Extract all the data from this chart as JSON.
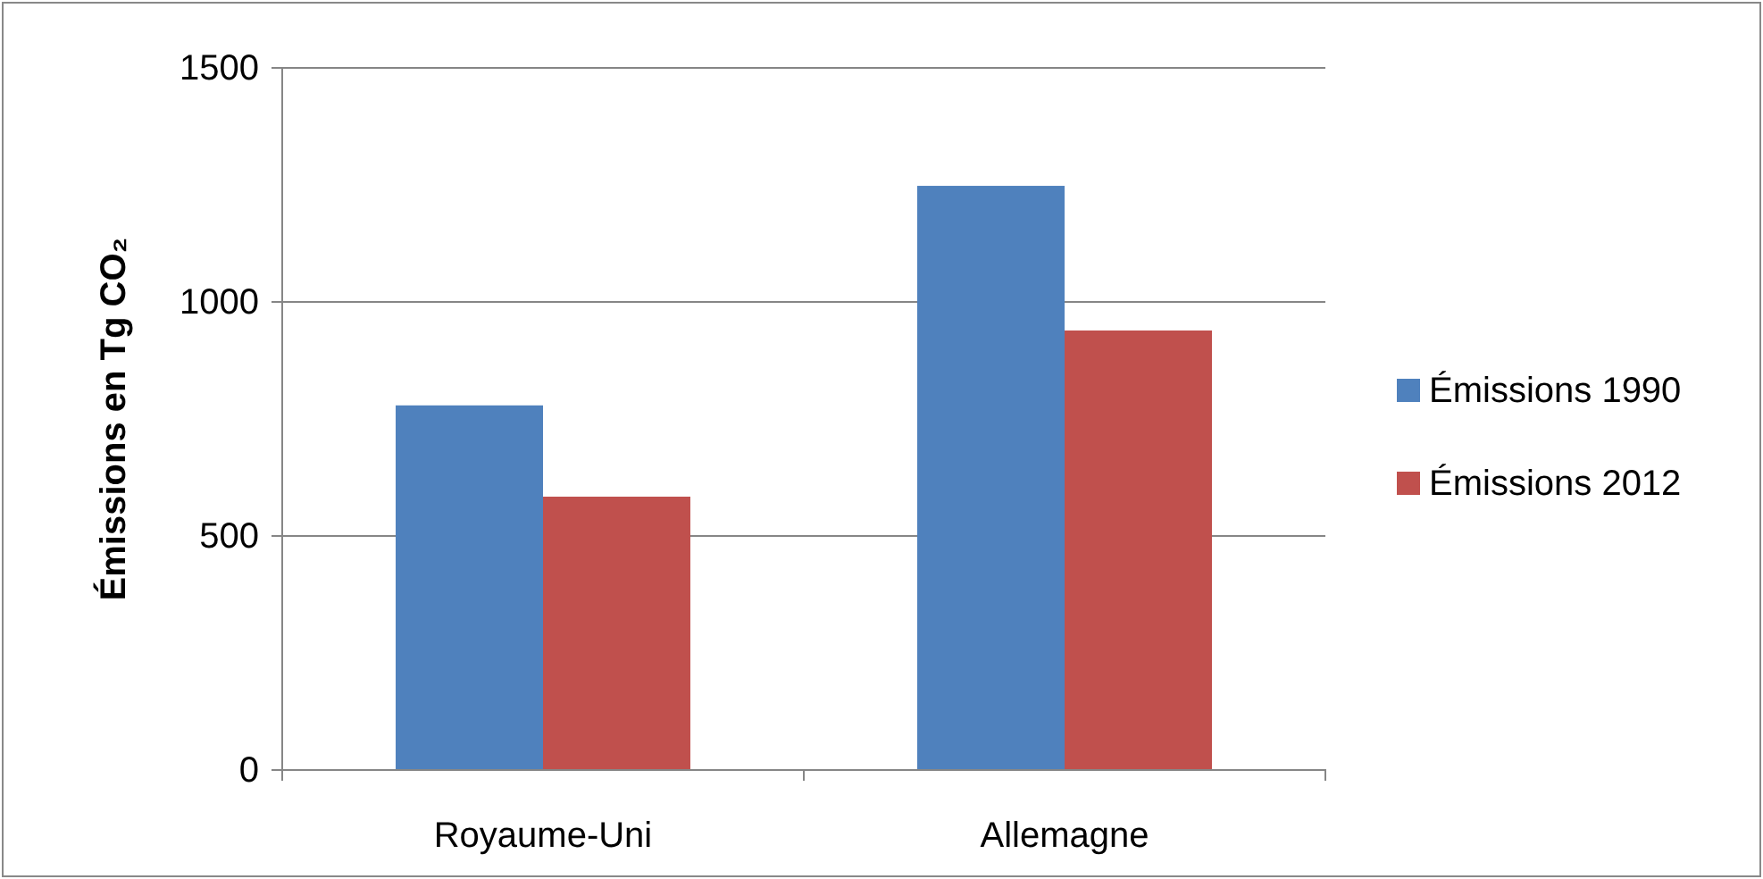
{
  "chart_data": {
    "type": "bar",
    "ylabel": "Émissions en Tg CO₂",
    "categories": [
      "Royaume-Uni",
      "Allemagne"
    ],
    "series": [
      {
        "name": "Émissions 1990",
        "color": "#4f81bd",
        "values": [
          779,
          1248
        ]
      },
      {
        "name": "Émissions 2012",
        "color": "#c0504d",
        "values": [
          584,
          939
        ]
      }
    ],
    "ylim": [
      0,
      1500
    ],
    "yticks": [
      0,
      500,
      1000,
      1500
    ],
    "grid": "y",
    "legend": "right"
  }
}
